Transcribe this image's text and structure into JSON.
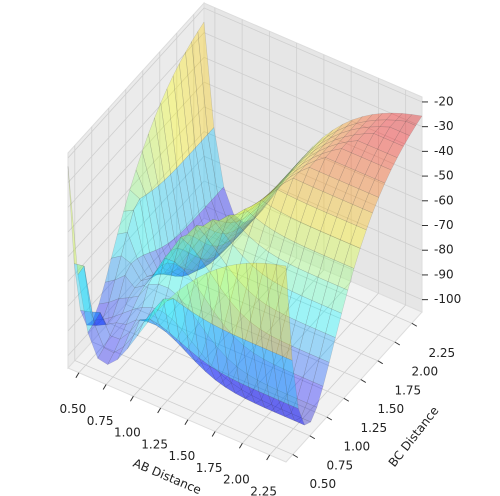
{
  "chart_data": {
    "type": "surface3d",
    "xlabel": "AB Distance",
    "ylabel": "BC Distance",
    "xlim": [
      0.4,
      2.4
    ],
    "ylim": [
      0.4,
      2.4
    ],
    "zlim": [
      -105,
      -18
    ],
    "xticks": [
      {
        "value": 0.5,
        "label": "0.50"
      },
      {
        "value": 0.75,
        "label": "0.75"
      },
      {
        "value": 1.0,
        "label": "1.00"
      },
      {
        "value": 1.25,
        "label": "1.25"
      },
      {
        "value": 1.5,
        "label": "1.50"
      },
      {
        "value": 1.75,
        "label": "1.75"
      },
      {
        "value": 2.0,
        "label": "2.00"
      },
      {
        "value": 2.25,
        "label": "2.25"
      }
    ],
    "yticks": [
      {
        "value": 0.5,
        "label": "0.50"
      },
      {
        "value": 0.75,
        "label": "0.75"
      },
      {
        "value": 1.0,
        "label": "1.00"
      },
      {
        "value": 1.25,
        "label": "1.25"
      },
      {
        "value": 1.5,
        "label": "1.50"
      },
      {
        "value": 1.75,
        "label": "1.75"
      },
      {
        "value": 2.0,
        "label": "2.00"
      },
      {
        "value": 2.25,
        "label": "2.25"
      }
    ],
    "zticks": [
      -20,
      -30,
      -40,
      -50,
      -60,
      -70,
      -80,
      -90,
      -100
    ],
    "grid": true
  }
}
